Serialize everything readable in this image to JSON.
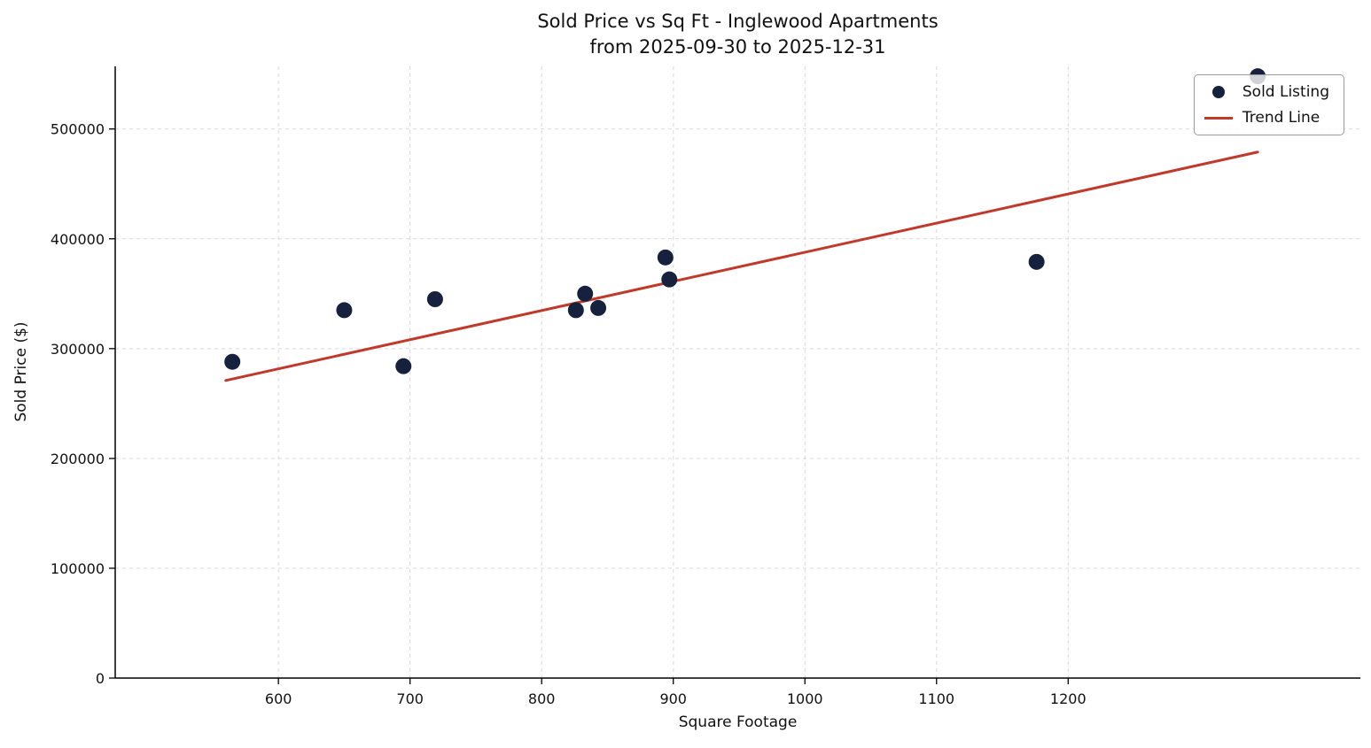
{
  "chart_data": {
    "type": "scatter",
    "title": "Sold Price vs Sq Ft - Inglewood Apartments",
    "subtitle": "from 2025-09-30 to 2025-12-31",
    "xlabel": "Square Footage",
    "ylabel": "Sold Price ($)",
    "xlim": [
      476,
      1422
    ],
    "ylim": [
      0,
      557000
    ],
    "xticks": [
      600,
      700,
      800,
      900,
      1000,
      1100,
      1200
    ],
    "yticks": [
      0,
      100000,
      200000,
      300000,
      400000,
      500000
    ],
    "grid": true,
    "grid_color": "#d9d9d9",
    "grid_dash": "4 4",
    "legend_position": "upper right",
    "series": [
      {
        "name": "Sold Listing",
        "type": "scatter",
        "color": "#16213E",
        "marker_radius": 9,
        "points": [
          [
            565,
            288000
          ],
          [
            650,
            335000
          ],
          [
            695,
            284000
          ],
          [
            719,
            345000
          ],
          [
            826,
            335000
          ],
          [
            833,
            350000
          ],
          [
            843,
            337000
          ],
          [
            894,
            383000
          ],
          [
            897,
            363000
          ],
          [
            1176,
            379000
          ],
          [
            1344,
            548000
          ]
        ]
      },
      {
        "name": "Trend Line",
        "type": "line",
        "color": "#C0392B",
        "stroke_width": 3,
        "points": [
          [
            560,
            271000
          ],
          [
            1344,
            479000
          ]
        ]
      }
    ]
  }
}
